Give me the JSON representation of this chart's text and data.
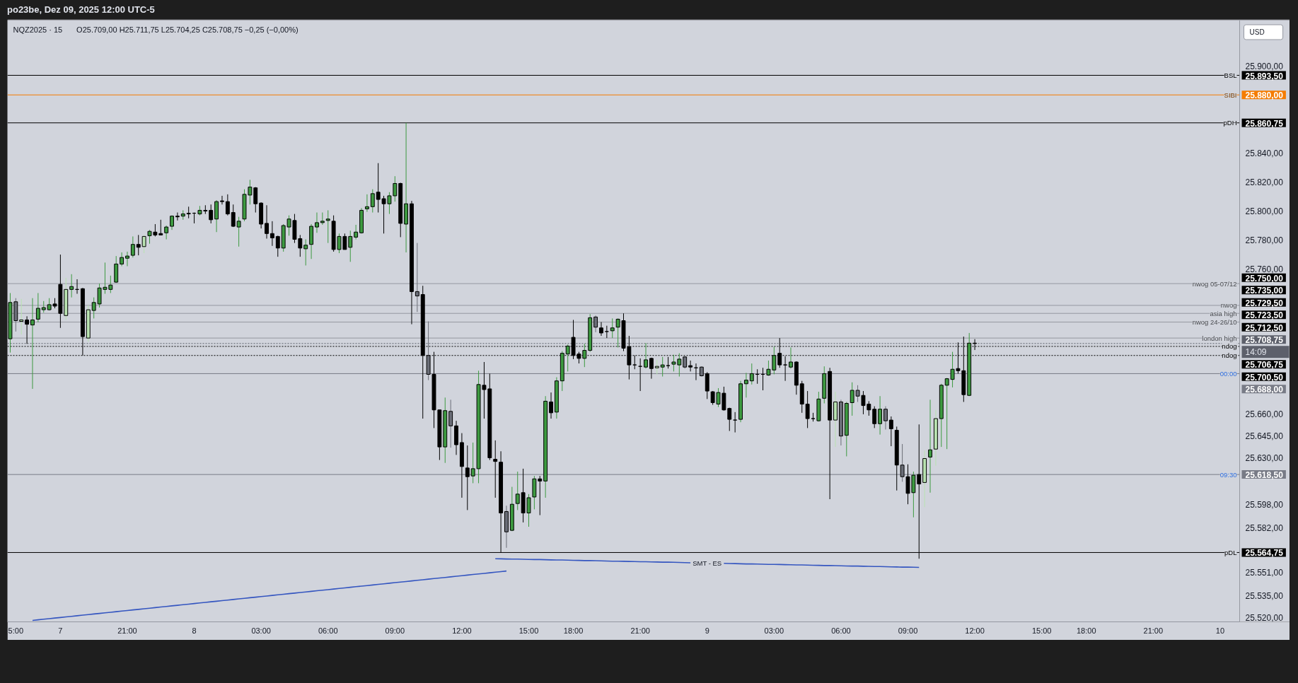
{
  "chart_data": {
    "type": "candlestick",
    "title": "NQZ2025 · 15",
    "subtitle": "O25.709,00  H25.711,75  L25.704,25  C25.708,75  −0,25 (−0,00%)",
    "categories": [
      null,
      "5:00",
      null,
      null,
      null,
      null,
      null,
      null,
      null,
      "7",
      null,
      null,
      null,
      null,
      null,
      null,
      null,
      null,
      null,
      null,
      null,
      "21:00",
      null,
      null,
      null,
      null,
      null,
      null,
      null,
      null,
      null,
      null,
      null,
      "8",
      null,
      null,
      null,
      null,
      null,
      null,
      null,
      null,
      null,
      null,
      null,
      "03:00",
      null,
      null,
      null,
      null,
      null,
      null,
      null,
      null,
      null,
      null,
      null,
      "06:00",
      null,
      null,
      null,
      null,
      null,
      null,
      null,
      null,
      null,
      null,
      null,
      "09:00",
      null,
      null,
      null,
      null,
      null,
      null,
      null,
      null,
      null,
      null,
      null,
      "12:00",
      null,
      null,
      null,
      null,
      null,
      null,
      null,
      null,
      null,
      null,
      null,
      "15:00",
      null,
      null,
      null,
      null,
      null,
      null,
      null,
      "18:00",
      null,
      null,
      null,
      null,
      null,
      null,
      null,
      null,
      null,
      null,
      null,
      "21:00",
      null,
      null,
      null,
      null,
      null,
      null,
      null,
      null,
      null,
      null,
      null,
      "9",
      null,
      null,
      null,
      null,
      null,
      null,
      null,
      null,
      null,
      null,
      null,
      "03:00",
      null,
      null,
      null,
      null,
      null,
      null,
      null,
      null,
      null,
      null,
      null,
      "06:00",
      null,
      null,
      null,
      null,
      null,
      null,
      null,
      null,
      null,
      null,
      null,
      "09:00",
      null,
      null,
      null,
      null,
      null,
      null,
      null,
      null,
      null,
      null,
      null,
      "12:00",
      null,
      null,
      null,
      null,
      null,
      null,
      null,
      null,
      null,
      null,
      null,
      "15:00",
      null,
      null,
      null,
      null,
      null,
      null,
      null,
      "18:00",
      null,
      null,
      null,
      null,
      null,
      null,
      null,
      null,
      null,
      null,
      null,
      "21:00",
      null,
      null,
      null,
      null,
      null,
      null,
      null,
      null,
      null,
      null,
      null,
      "10",
      null,
      null,
      null
    ],
    "ohlc": [
      [
        25712,
        25743.5,
        25702.5,
        25737
      ],
      [
        25737.5,
        25740,
        25717,
        25724.5
      ],
      [
        25724,
        25739.5,
        25715,
        25725
      ],
      [
        25725,
        25727.5,
        25708.5,
        25722
      ],
      [
        25721.5,
        25740,
        25677.5,
        25725
      ],
      [
        25725.5,
        25743.5,
        25723.5,
        25733
      ],
      [
        25732,
        25738,
        25730,
        25733.5
      ],
      [
        25732,
        25740,
        25731.5,
        25735.5
      ],
      [
        25736,
        25740,
        25733,
        25734.5
      ],
      [
        25749.5,
        25770,
        25719.5,
        25729.5
      ],
      [
        25728,
        25754,
        25725,
        25746
      ],
      [
        25746,
        25756.5,
        25740.5,
        25748
      ],
      [
        25746,
        25753,
        25743,
        25746
      ],
      [
        25746.5,
        25747,
        25700.5,
        25713.5
      ],
      [
        25712.5,
        25735,
        25710,
        25732
      ],
      [
        25731.5,
        25740.5,
        25726,
        25737
      ],
      [
        25736,
        25750,
        25733.5,
        25747
      ],
      [
        25746,
        25764.5,
        25743,
        25747.5
      ],
      [
        25746,
        25755.5,
        25743.5,
        25749
      ],
      [
        25751,
        25769,
        25750.5,
        25763.5
      ],
      [
        25763.5,
        25771.5,
        25762,
        25768
      ],
      [
        25767.5,
        25772,
        25762,
        25769
      ],
      [
        25769.5,
        25782.5,
        25768,
        25777
      ],
      [
        25777,
        25783.5,
        25769.5,
        25775
      ],
      [
        25775.5,
        25783.5,
        25771,
        25782.5
      ],
      [
        25783,
        25787,
        25777.5,
        25786
      ],
      [
        25785.5,
        25791,
        25782.5,
        25783.5
      ],
      [
        25784.5,
        25794,
        25783.5,
        25783.5
      ],
      [
        25785,
        25790,
        25780.5,
        25789
      ],
      [
        25789.5,
        25797,
        25787,
        25796.5
      ],
      [
        25796.5,
        25799,
        25793.5,
        25796
      ],
      [
        25796.5,
        25800.5,
        25794,
        25798
      ],
      [
        25798.5,
        25803,
        25795,
        25798
      ],
      [
        25798.5,
        25799,
        25791.5,
        25798.5
      ],
      [
        25798,
        25803.5,
        25797,
        25800.5
      ],
      [
        25800.5,
        25804,
        25798,
        25800
      ],
      [
        25800.5,
        25804.5,
        25791.5,
        25794
      ],
      [
        25794.5,
        25807.5,
        25785.5,
        25806.5
      ],
      [
        25807,
        25810.5,
        25804.5,
        25806.5
      ],
      [
        25806.5,
        25811.5,
        25797,
        25798
      ],
      [
        25799,
        25804.5,
        25789,
        25789.5
      ],
      [
        25789,
        25796,
        25775.5,
        25793
      ],
      [
        25794.5,
        25815,
        25793,
        25811.5
      ],
      [
        25811,
        25821.5,
        25804.5,
        25816.5
      ],
      [
        25816,
        25816.5,
        25799,
        25805
      ],
      [
        25805.5,
        25806,
        25788,
        25791
      ],
      [
        25791.5,
        25804,
        25781,
        25784.5
      ],
      [
        25784.5,
        25793,
        25776,
        25781.5
      ],
      [
        25782.5,
        25783,
        25768.5,
        25774.5
      ],
      [
        25774.5,
        25791,
        25772,
        25790
      ],
      [
        25789,
        25797,
        25783,
        25794.5
      ],
      [
        25793.5,
        25798,
        25778,
        25780.5
      ],
      [
        25781,
        25783.5,
        25768.5,
        25774.5
      ],
      [
        25774,
        25780.5,
        25762.5,
        25776.5
      ],
      [
        25777,
        25791,
        25767,
        25789.5
      ],
      [
        25789,
        25799,
        25785,
        25792
      ],
      [
        25792,
        25799,
        25790.5,
        25793
      ],
      [
        25793.5,
        25800.5,
        25778,
        25794.5
      ],
      [
        25793,
        25797,
        25772,
        25773.5
      ],
      [
        25773.5,
        25784.5,
        25771,
        25782.5
      ],
      [
        25782.5,
        25784.5,
        25773.5,
        25773.5
      ],
      [
        25775,
        25786.5,
        25765,
        25782.5
      ],
      [
        25782,
        25790.5,
        25780.5,
        25785.5
      ],
      [
        25785,
        25802,
        25784.5,
        25800.5
      ],
      [
        25801.5,
        25811.5,
        25799.5,
        25803
      ],
      [
        25803,
        25815,
        25799,
        25812
      ],
      [
        25813,
        25833,
        25799,
        25808
      ],
      [
        25808.5,
        25810.5,
        25784.5,
        25805
      ],
      [
        25805,
        25813,
        25798,
        25810.5
      ],
      [
        25810.5,
        25824,
        25806.5,
        25819
      ],
      [
        25819,
        25819.5,
        25782,
        25791.5
      ],
      [
        25791,
        25860.75,
        25771.5,
        25805
      ],
      [
        25805,
        25807,
        25722,
        25744.5
      ],
      [
        25744.5,
        25778,
        25730.5,
        25741.5
      ],
      [
        25742.5,
        25748.5,
        25657,
        25700.5
      ],
      [
        25700.5,
        25724,
        25683.5,
        25687.5
      ],
      [
        25687.5,
        25703,
        25650.5,
        25663
      ],
      [
        25663,
        25663,
        25628.5,
        25637.5
      ],
      [
        25637.5,
        25671.5,
        25626.5,
        25662.5
      ],
      [
        25662,
        25670,
        25637,
        25652
      ],
      [
        25652,
        25655.5,
        25632,
        25639
      ],
      [
        25640.5,
        25647,
        25602.5,
        25624
      ],
      [
        25623,
        25638.5,
        25594,
        25617
      ],
      [
        25617.5,
        25640.5,
        25612.5,
        25622.5
      ],
      [
        25622.5,
        25690,
        25612.5,
        25680.5
      ],
      [
        25680,
        25696,
        25657,
        25677
      ],
      [
        25677.5,
        25688,
        25628.5,
        25630
      ],
      [
        25629,
        25642,
        25602.5,
        25627.5
      ],
      [
        25627,
        25634.5,
        25564.75,
        25592
      ],
      [
        25593,
        25597,
        25568,
        25579
      ],
      [
        25580,
        25610,
        25579.5,
        25598
      ],
      [
        25598.5,
        25620.5,
        25594,
        25605
      ],
      [
        25606,
        25622.5,
        25585.5,
        25592
      ],
      [
        25592,
        25605,
        25582.5,
        25602.5
      ],
      [
        25603,
        25617.5,
        25594.5,
        25615.5
      ],
      [
        25615.5,
        25617.5,
        25590.5,
        25614
      ],
      [
        25614,
        25672.5,
        25602.5,
        25669
      ],
      [
        25668.5,
        25675,
        25657,
        25661
      ],
      [
        25661.5,
        25685.5,
        25657,
        25683
      ],
      [
        25683,
        25703.5,
        25676,
        25702
      ],
      [
        25701.5,
        25708,
        25689.5,
        25707
      ],
      [
        25713,
        25725,
        25698,
        25700.5
      ],
      [
        25701.5,
        25703,
        25695,
        25698.5
      ],
      [
        25698.5,
        25708.5,
        25692.5,
        25704
      ],
      [
        25704,
        25729,
        25703,
        25726.5
      ],
      [
        25727,
        25728,
        25716.5,
        25720
      ],
      [
        25719.5,
        25723.5,
        25714,
        25716
      ],
      [
        25717,
        25721,
        25712.5,
        25717
      ],
      [
        25717.5,
        25726,
        25712.5,
        25719.5
      ],
      [
        25720,
        25726,
        25706,
        25725.5
      ],
      [
        25724.5,
        25729.5,
        25703.5,
        25705.5
      ],
      [
        25706.5,
        25714,
        25684,
        25694
      ],
      [
        25694,
        25700.5,
        25691,
        25694
      ],
      [
        25693,
        25698.5,
        25676,
        25693
      ],
      [
        25692.5,
        25709,
        25691.5,
        25697.5
      ],
      [
        25698.5,
        25699,
        25684.5,
        25691.5
      ],
      [
        25692,
        25697.5,
        25687.5,
        25693
      ],
      [
        25692.5,
        25699.5,
        25686,
        25694
      ],
      [
        25693.5,
        25699.5,
        25691.5,
        25693.5
      ],
      [
        25694.5,
        25701,
        25689.5,
        25696
      ],
      [
        25694,
        25702,
        25686,
        25698
      ],
      [
        25699.5,
        25700,
        25691.5,
        25692.5
      ],
      [
        25693.5,
        25697,
        25689.5,
        25692.5
      ],
      [
        25692,
        25695,
        25683.5,
        25692
      ],
      [
        25692.5,
        25693,
        25686,
        25686.5
      ],
      [
        25688,
        25689,
        25670.5,
        25676
      ],
      [
        25675.5,
        25676,
        25666.5,
        25668
      ],
      [
        25667,
        25678,
        25665,
        25675
      ],
      [
        25674.5,
        25679,
        25662.5,
        25663
      ],
      [
        25664,
        25664.5,
        25648.5,
        25656.5
      ],
      [
        25656,
        25661.5,
        25647.5,
        25656
      ],
      [
        25656.5,
        25683,
        25654.5,
        25681
      ],
      [
        25681,
        25688.5,
        25671.5,
        25683.5
      ],
      [
        25683,
        25695,
        25680.5,
        25688
      ],
      [
        25687.5,
        25691,
        25681,
        25687.5
      ],
      [
        25687.5,
        25692,
        25676.5,
        25687.5
      ],
      [
        25687,
        25697,
        25686.5,
        25691
      ],
      [
        25690.5,
        25706.5,
        25687.5,
        25700.5
      ],
      [
        25702,
        25712.5,
        25692,
        25694
      ],
      [
        25694,
        25700,
        25683,
        25694
      ],
      [
        25692.5,
        25706,
        25691.5,
        25696
      ],
      [
        25696,
        25696.5,
        25673.5,
        25680
      ],
      [
        25681,
        25683,
        25661,
        25667
      ],
      [
        25667,
        25676,
        25650.5,
        25657
      ],
      [
        25657,
        25661,
        25655,
        25657
      ],
      [
        25655.5,
        25675.5,
        25655,
        25670.5
      ],
      [
        25671,
        25693,
        25667.5,
        25688
      ],
      [
        25689.5,
        25692,
        25601.5,
        25656
      ],
      [
        25656,
        25675.5,
        25637.5,
        25668.5
      ],
      [
        25668.5,
        25670,
        25638.5,
        25645
      ],
      [
        25645.5,
        25668.5,
        25631,
        25667.5
      ],
      [
        25668,
        25682,
        25659,
        25676.5
      ],
      [
        25676.5,
        25680,
        25668.5,
        25672.5
      ],
      [
        25673,
        25676,
        25660,
        25666
      ],
      [
        25667,
        25669,
        25659,
        25663
      ],
      [
        25663.5,
        25665.5,
        25650.5,
        25653.5
      ],
      [
        25653.5,
        25672.5,
        25646,
        25663.5
      ],
      [
        25663.5,
        25665.5,
        25649.5,
        25655.5
      ],
      [
        25656,
        25658.5,
        25638,
        25650
      ],
      [
        25649,
        25651.5,
        25607.5,
        25625
      ],
      [
        25625,
        25639.5,
        25613.5,
        25617
      ],
      [
        25617,
        25625.5,
        25598,
        25605.5
      ],
      [
        25606,
        25620.5,
        25589,
        25618
      ],
      [
        25618.5,
        25653,
        25560.5,
        25612
      ],
      [
        25613,
        25635,
        25596,
        25629.5
      ],
      [
        25630.5,
        25670,
        25606,
        25635.5
      ],
      [
        25636,
        25663,
        25624.5,
        25657
      ],
      [
        25657,
        25681,
        25637.5,
        25680
      ],
      [
        25680,
        25685,
        25636,
        25684.5
      ],
      [
        25684,
        25703,
        25678.5,
        25691
      ],
      [
        25691.5,
        25709.5,
        25688,
        25690
      ],
      [
        25690,
        25713.5,
        25668.5,
        25673.5
      ],
      [
        25673,
        25716,
        25672.5,
        25709
      ],
      [
        25709,
        25711.75,
        25704.25,
        25708.75
      ],
      null,
      null,
      null,
      null,
      null,
      null,
      null,
      null,
      null,
      null,
      null,
      null,
      null,
      null,
      null,
      null,
      null,
      null,
      null,
      null,
      null,
      null,
      null,
      null,
      null,
      null,
      null,
      null,
      null,
      null,
      null,
      null,
      null,
      null,
      null,
      null,
      null,
      null,
      null,
      null,
      null,
      null,
      null,
      null,
      null,
      null,
      null
    ],
    "colors": [
      "#3d9a40",
      "#6b6e78",
      "#b9e3b1",
      "#000000",
      "#3d9a40",
      "#3d9a40",
      "#3d9a40",
      "#3d9a40",
      "#000000",
      "#000000",
      "#b9e3b1",
      "#3d9a40",
      "#000000",
      "#000000",
      "#b9e3b1",
      "#3d9a40",
      "#3d9a40",
      "#3d9a40",
      "#3d9a40",
      "#3d9a40",
      "#3d9a40",
      "#3d9a40",
      "#3d9a40",
      "#000000",
      "#b9e3b1",
      "#3d9a40",
      "#000000",
      "#000000",
      "#3d9a40",
      "#3d9a40",
      "#000000",
      "#3d9a40",
      "#000000",
      "#000000",
      "#3d9a40",
      "#000000",
      "#000000",
      "#3d9a40",
      "#000000",
      "#000000",
      "#000000",
      "#3d9a40",
      "#3d9a40",
      "#3d9a40",
      "#000000",
      "#000000",
      "#000000",
      "#000000",
      "#000000",
      "#3d9a40",
      "#3d9a40",
      "#000000",
      "#000000",
      "#3d9a40",
      "#3d9a40",
      "#3d9a40",
      "#3d9a40",
      "#3d9a40",
      "#000000",
      "#3d9a40",
      "#000000",
      "#3d9a40",
      "#3d9a40",
      "#3d9a40",
      "#3d9a40",
      "#3d9a40",
      "#000000",
      "#000000",
      "#3d9a40",
      "#3d9a40",
      "#000000",
      "#3d9a40",
      "#000000",
      "#6b6e78",
      "#000000",
      "#6b6e78",
      "#000000",
      "#000000",
      "#3d9a40",
      "#6b6e78",
      "#000000",
      "#000000",
      "#000000",
      "#3d9a40",
      "#3d9a40",
      "#000000",
      "#000000",
      "#000000",
      "#000000",
      "#6b6e78",
      "#3d9a40",
      "#3d9a40",
      "#000000",
      "#3d9a40",
      "#3d9a40",
      "#000000",
      "#3d9a40",
      "#000000",
      "#3d9a40",
      "#3d9a40",
      "#3d9a40",
      "#000000",
      "#000000",
      "#3d9a40",
      "#3d9a40",
      "#6b6e78",
      "#000000",
      "#000000",
      "#3d9a40",
      "#3d9a40",
      "#000000",
      "#000000",
      "#000000",
      "#000000",
      "#3d9a40",
      "#000000",
      "#b9e3b1",
      "#3d9a40",
      "#000000",
      "#3d9a40",
      "#3d9a40",
      "#6b6e78",
      "#000000",
      "#000000",
      "#6b6e78",
      "#000000",
      "#000000",
      "#3d9a40",
      "#000000",
      "#000000",
      "#000000",
      "#3d9a40",
      "#3d9a40",
      "#3d9a40",
      "#000000",
      "#000000",
      "#3d9a40",
      "#3d9a40",
      "#000000",
      "#000000",
      "#3d9a40",
      "#000000",
      "#000000",
      "#000000",
      "#000000",
      "#3d9a40",
      "#3d9a40",
      "#000000",
      "#b9e3b1",
      "#6b6e78",
      "#3d9a40",
      "#3d9a40",
      "#6b6e78",
      "#000000",
      "#000000",
      "#000000",
      "#3d9a40",
      "#6b6e78",
      "#000000",
      "#000000",
      "#6b6e78",
      "#000000",
      "#3d9a40",
      "#000000",
      "#b9e3b1",
      "#3d9a40",
      "#b9e3b1",
      "#3d9a40",
      "#3d9a40",
      "#3d9a40",
      "#000000",
      "#000000",
      "#3d9a40",
      "#000000",
      null,
      null,
      null,
      null,
      null,
      null,
      null,
      null,
      null,
      null,
      null,
      null,
      null,
      null,
      null,
      null,
      null,
      null,
      null,
      null,
      null,
      null,
      null,
      null,
      null,
      null,
      null,
      null,
      null,
      null,
      null,
      null,
      null,
      null,
      null,
      null,
      null,
      null,
      null,
      null,
      null,
      null,
      null,
      null,
      null,
      null,
      null
    ],
    "series": [
      {
        "type": "line",
        "color": "#3556c0",
        "values": [
          null,
          null,
          null,
          null,
          25518,
          25518.4,
          25518.8,
          25519.2,
          25519.6,
          25520,
          25520.4,
          25520.8,
          25521.2,
          25521.6,
          25522,
          25522.4,
          25522.8,
          25523.2,
          25523.6,
          25524,
          25524.4,
          25524.8,
          25525.2,
          25525.6,
          25526,
          25526.4,
          25526.8,
          25527.2,
          25527.6,
          25528,
          25528.4,
          25528.8,
          25529.2,
          25529.6,
          25530,
          25530.4,
          25530.8,
          25531.2,
          25531.6,
          25532,
          25532.4,
          25532.8,
          25533.2,
          25533.6,
          25534,
          25534.4,
          25534.8,
          25535.2,
          25535.6,
          25536,
          25536.4,
          25536.8,
          25537.2,
          25537.6,
          25538,
          25538.4,
          25538.8,
          25539.2,
          25539.6,
          25540,
          25540.4,
          25540.8,
          25541.2,
          25541.6,
          25542,
          25542.4,
          25542.8,
          25543.2,
          25543.6,
          25544,
          25544.4,
          25544.8,
          25545.2,
          25545.6,
          25546,
          25546.4,
          25546.8,
          25547.2,
          25547.6,
          25548,
          25548.4,
          25548.8,
          25549.2,
          25549.6,
          25550,
          25550.4,
          25550.8,
          25551.2,
          25551.6,
          25552,
          null,
          null,
          null,
          null,
          null,
          null,
          null,
          null,
          null,
          null,
          null,
          null,
          null,
          null,
          null,
          null,
          null,
          null,
          null,
          null,
          null,
          null,
          null,
          null,
          null,
          null,
          null,
          null,
          null,
          null,
          null,
          null,
          null,
          null,
          null,
          null,
          null,
          null,
          null,
          null,
          null,
          null,
          null,
          null,
          null,
          null,
          null,
          null,
          null,
          null,
          null,
          null,
          null,
          null,
          null,
          null,
          null,
          null,
          null,
          null,
          null,
          null,
          null,
          null,
          null,
          null,
          null,
          null,
          null,
          null,
          null,
          null,
          null,
          null,
          null,
          null,
          null,
          null,
          null,
          null,
          null,
          null,
          null,
          null,
          null,
          null,
          null,
          null,
          null,
          null,
          null,
          null,
          null,
          null,
          null,
          null,
          null,
          null,
          null,
          null,
          null,
          null,
          null,
          null,
          null,
          null,
          null,
          null,
          null,
          null,
          null,
          null,
          null,
          null,
          null,
          null,
          null,
          null,
          null,
          null,
          null,
          null,
          null,
          null,
          null,
          null,
          null,
          null,
          null,
          null,
          null
        ]
      },
      {
        "type": "line",
        "color": "#3556c0",
        "values": [
          null,
          null,
          null,
          null,
          null,
          null,
          null,
          null,
          null,
          null,
          null,
          null,
          null,
          null,
          null,
          null,
          null,
          null,
          null,
          null,
          null,
          null,
          null,
          null,
          null,
          null,
          null,
          null,
          null,
          null,
          null,
          null,
          null,
          null,
          null,
          null,
          null,
          null,
          null,
          null,
          null,
          null,
          null,
          null,
          null,
          null,
          null,
          null,
          null,
          null,
          null,
          null,
          null,
          null,
          null,
          null,
          null,
          null,
          null,
          null,
          null,
          null,
          null,
          null,
          null,
          null,
          null,
          null,
          null,
          null,
          null,
          null,
          null,
          null,
          null,
          null,
          null,
          null,
          null,
          null,
          null,
          null,
          null,
          null,
          null,
          null,
          null,
          25560.5,
          25560.4,
          25560.3,
          25560.2,
          25560.2,
          25560.1,
          25560,
          25559.9,
          25559.9,
          25559.8,
          25559.7,
          25559.6,
          25559.6,
          25559.5,
          25559.4,
          25559.3,
          25559.2,
          25559.2,
          25559.1,
          25559,
          25558.9,
          25558.8,
          25558.8,
          25558.7,
          25558.6,
          25558.5,
          25558.4,
          25558.4,
          25558.3,
          25558.2,
          25558.1,
          25558.1,
          25558,
          25557.9,
          25557.8,
          25557.7,
          null,
          null,
          null,
          null,
          null,
          25557.3,
          25557.2,
          25557.1,
          25557,
          25556.9,
          25556.9,
          25556.8,
          25556.7,
          25556.6,
          25556.6,
          25556.5,
          25556.4,
          25556.3,
          25556.2,
          25556.2,
          25556.1,
          25556,
          25555.9,
          25555.8,
          25555.8,
          25555.7,
          25555.6,
          25555.5,
          25555.4,
          25555.4,
          25555.3,
          25555.2,
          25555.1,
          25555.1,
          25555,
          25554.9,
          25554.8,
          25554.7,
          25554.7,
          25554.6,
          25554.5,
          null,
          null,
          null,
          null,
          null,
          null,
          null,
          null,
          null,
          null,
          null,
          null,
          null,
          null,
          null,
          null,
          null,
          null,
          null,
          null,
          null,
          null,
          null,
          null,
          null,
          null,
          null,
          null,
          null,
          null,
          null,
          null,
          null,
          null,
          null,
          null,
          null,
          null,
          null,
          null,
          null,
          null,
          null,
          null,
          null,
          null,
          null,
          null,
          null,
          null,
          null,
          null,
          null,
          null,
          null,
          null,
          null
        ]
      }
    ],
    "ylim": [
      25517,
      25931.5
    ],
    "yticks": [
      {
        "value": 25900,
        "label": "25.900,00"
      },
      {
        "value": 25840,
        "label": "25.840,00"
      },
      {
        "value": 25820,
        "label": "25.820,00"
      },
      {
        "value": 25800,
        "label": "25.800,00"
      },
      {
        "value": 25780,
        "label": "25.780,00"
      },
      {
        "value": 25760,
        "label": "25.760,00"
      },
      {
        "value": 25660,
        "label": "25.660,00"
      },
      {
        "value": 25645,
        "label": "25.645,00"
      },
      {
        "value": 25630,
        "label": "25.630,00"
      },
      {
        "value": 25598,
        "label": "25.598,00"
      },
      {
        "value": 25582,
        "label": "25.582,00"
      },
      {
        "value": 25551,
        "label": "25.551,00"
      },
      {
        "value": 25535,
        "label": "25.535,00"
      },
      {
        "value": 25520,
        "label": "25.520,00"
      }
    ],
    "ref_lines": [
      {
        "axis": "y",
        "value": 25893.5,
        "label": "BSL",
        "color": "#000000"
      },
      {
        "axis": "y",
        "value": 25880,
        "label": "SIBI",
        "color": "#f57c00"
      },
      {
        "axis": "y",
        "value": 25860.75,
        "label": "pDH",
        "color": "#000000"
      },
      {
        "axis": "y",
        "value": 25750,
        "label": "nwog 05-07/12",
        "color": "#9598a1"
      },
      {
        "axis": "y",
        "value": 25735,
        "label": "nwog",
        "color": "#9598a1"
      },
      {
        "axis": "y",
        "value": 25729.5,
        "label": "asia high",
        "color": "#9598a1"
      },
      {
        "axis": "y",
        "value": 25723.5,
        "label": "nwog 24-26/10",
        "color": "#9598a1"
      },
      {
        "axis": "y",
        "value": 25712.5,
        "label": "london high",
        "color": "#9598a1"
      },
      {
        "axis": "y",
        "value": 25708.75,
        "color": "#5d606b",
        "line_style": "dotted"
      },
      {
        "axis": "y",
        "value": 25706.75,
        "label": "ndog",
        "color": "#000000",
        "line_style": "dotted"
      },
      {
        "axis": "y",
        "value": 25700.5,
        "label": "ndog",
        "color": "#000000",
        "line_style": "dotted"
      },
      {
        "axis": "y",
        "value": 25688,
        "color": "#787b86"
      },
      {
        "axis": "y",
        "value": 25618.5,
        "color": "#787b86"
      },
      {
        "axis": "y",
        "value": 25564.75,
        "label": "pDL",
        "color": "#000000"
      }
    ],
    "annotations": [
      "po23be, Dez 09, 2025 12:00 UTC-5",
      "USD",
      "14:09",
      "SMT - ES",
      "25.893,50",
      "25.880,00",
      "25.860,75",
      "25.750,00",
      "25.735,00",
      "25.729,50",
      "25.723,50",
      "25.712,50",
      "25.708,75",
      "25.706,75",
      "25.700,50",
      "25.688,00",
      "25.618,50",
      "25.564,75",
      {
        "text": "00:00",
        "y": 25688
      },
      {
        "text": "09:30",
        "y": 25618.5
      }
    ]
  }
}
